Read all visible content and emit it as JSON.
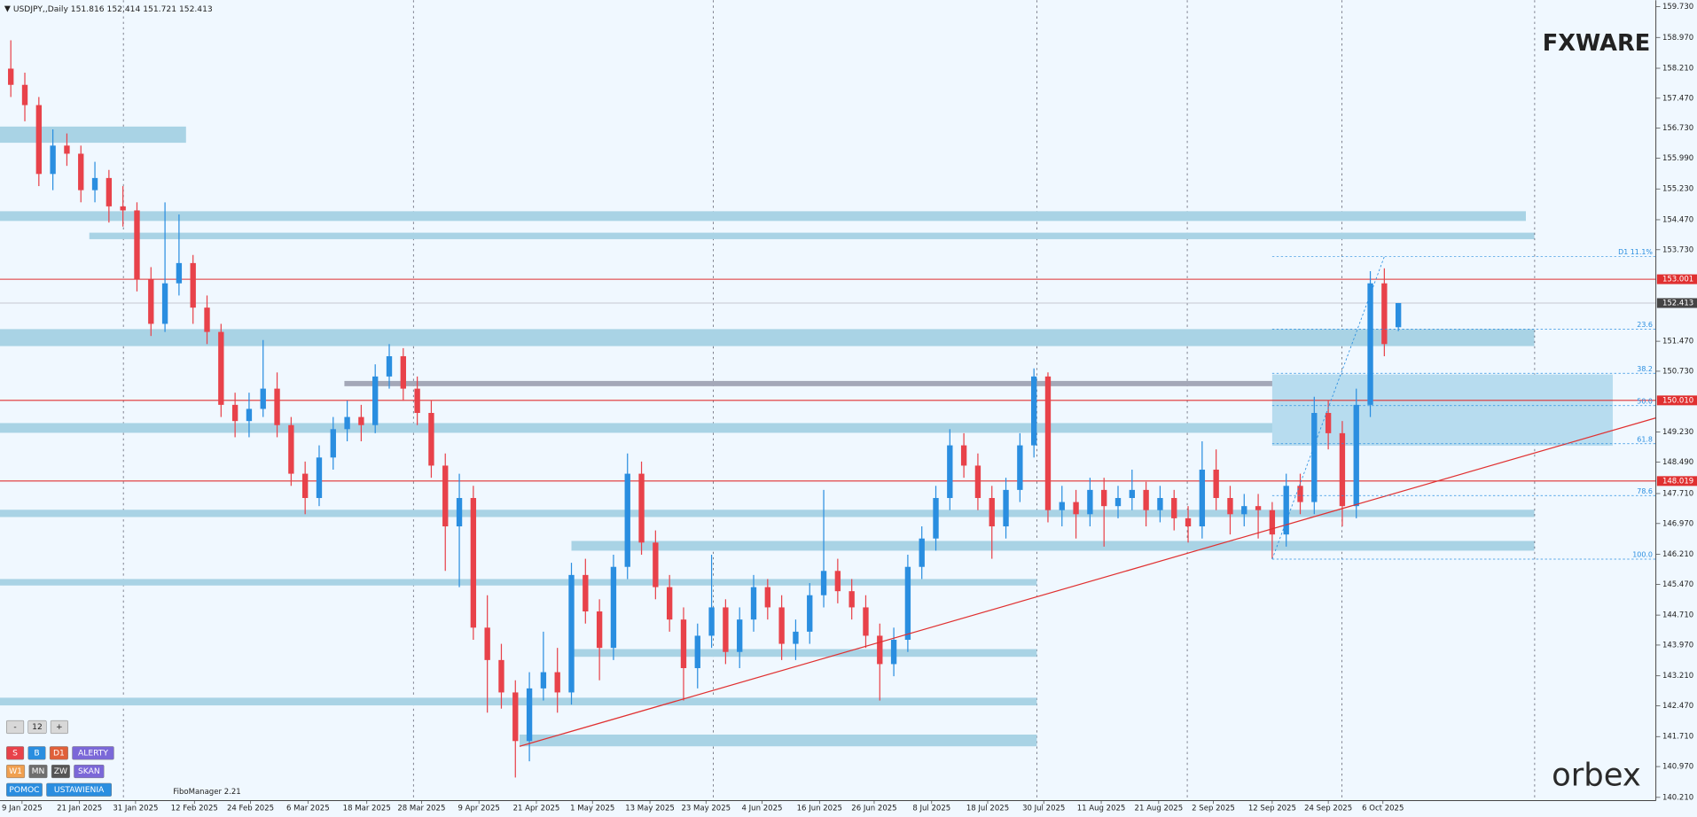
{
  "chart_data": {
    "type": "candlestick",
    "title": "USDJPY,,Daily",
    "candles": [
      [
        158.2,
        158.9,
        157.5,
        157.8
      ],
      [
        157.8,
        158.1,
        156.9,
        157.3
      ],
      [
        157.3,
        157.5,
        155.3,
        155.6
      ],
      [
        155.6,
        156.7,
        155.2,
        156.3
      ],
      [
        156.3,
        156.6,
        155.8,
        156.1
      ],
      [
        156.1,
        156.3,
        154.9,
        155.2
      ],
      [
        155.2,
        155.9,
        154.9,
        155.5
      ],
      [
        155.5,
        155.7,
        154.4,
        154.8
      ],
      [
        154.8,
        155.3,
        154.3,
        154.7
      ],
      [
        154.7,
        154.9,
        152.7,
        153.0
      ],
      [
        153.0,
        153.3,
        151.6,
        151.9
      ],
      [
        151.9,
        154.9,
        151.7,
        152.9
      ],
      [
        152.9,
        154.6,
        152.6,
        153.4
      ],
      [
        153.4,
        153.6,
        151.9,
        152.3
      ],
      [
        152.3,
        152.6,
        151.4,
        151.7
      ],
      [
        151.7,
        151.9,
        149.6,
        149.9
      ],
      [
        149.9,
        150.2,
        149.1,
        149.5
      ],
      [
        149.5,
        150.2,
        149.1,
        149.8
      ],
      [
        149.8,
        151.5,
        149.6,
        150.3
      ],
      [
        150.3,
        150.7,
        149.1,
        149.4
      ],
      [
        149.4,
        149.6,
        147.9,
        148.2
      ],
      [
        148.2,
        148.5,
        147.2,
        147.6
      ],
      [
        147.6,
        148.9,
        147.4,
        148.6
      ],
      [
        148.6,
        149.6,
        148.3,
        149.3
      ],
      [
        149.3,
        150.0,
        149.0,
        149.6
      ],
      [
        149.6,
        149.9,
        149.0,
        149.4
      ],
      [
        149.4,
        150.9,
        149.2,
        150.6
      ],
      [
        150.6,
        151.4,
        150.3,
        151.1
      ],
      [
        151.1,
        151.3,
        150.0,
        150.3
      ],
      [
        150.3,
        150.6,
        149.4,
        149.7
      ],
      [
        149.7,
        150.0,
        148.1,
        148.4
      ],
      [
        148.4,
        148.7,
        145.8,
        146.9
      ],
      [
        146.9,
        148.2,
        145.4,
        147.6
      ],
      [
        147.6,
        147.9,
        144.1,
        144.4
      ],
      [
        144.4,
        145.2,
        142.3,
        143.6
      ],
      [
        143.6,
        144.0,
        142.4,
        142.8
      ],
      [
        142.8,
        143.1,
        140.7,
        141.6
      ],
      [
        141.6,
        143.3,
        141.1,
        142.9
      ],
      [
        142.9,
        144.3,
        142.6,
        143.3
      ],
      [
        143.3,
        143.9,
        142.3,
        142.8
      ],
      [
        142.8,
        146.0,
        142.5,
        145.7
      ],
      [
        145.7,
        146.1,
        144.5,
        144.8
      ],
      [
        144.8,
        145.1,
        143.1,
        143.9
      ],
      [
        143.9,
        146.2,
        143.6,
        145.9
      ],
      [
        145.9,
        148.7,
        145.6,
        148.2
      ],
      [
        148.2,
        148.5,
        146.2,
        146.5
      ],
      [
        146.5,
        146.8,
        145.1,
        145.4
      ],
      [
        145.4,
        145.7,
        144.3,
        144.6
      ],
      [
        144.6,
        144.9,
        142.6,
        143.4
      ],
      [
        143.4,
        144.5,
        142.9,
        144.2
      ],
      [
        144.2,
        146.2,
        143.9,
        144.9
      ],
      [
        144.9,
        145.1,
        143.5,
        143.8
      ],
      [
        143.8,
        144.9,
        143.4,
        144.6
      ],
      [
        144.6,
        145.7,
        144.3,
        145.4
      ],
      [
        145.4,
        145.6,
        144.6,
        144.9
      ],
      [
        144.9,
        145.2,
        143.6,
        144.0
      ],
      [
        144.0,
        144.6,
        143.6,
        144.3
      ],
      [
        144.3,
        145.5,
        144.0,
        145.2
      ],
      [
        145.2,
        147.8,
        144.9,
        145.8
      ],
      [
        145.8,
        146.1,
        145.0,
        145.3
      ],
      [
        145.3,
        145.6,
        144.6,
        144.9
      ],
      [
        144.9,
        145.2,
        143.9,
        144.2
      ],
      [
        144.2,
        144.5,
        142.6,
        143.5
      ],
      [
        143.5,
        144.4,
        143.2,
        144.1
      ],
      [
        144.1,
        146.2,
        143.8,
        145.9
      ],
      [
        145.9,
        146.9,
        145.6,
        146.6
      ],
      [
        146.6,
        147.9,
        146.3,
        147.6
      ],
      [
        147.6,
        149.3,
        147.3,
        148.9
      ],
      [
        148.9,
        149.2,
        148.1,
        148.4
      ],
      [
        148.4,
        148.7,
        147.3,
        147.6
      ],
      [
        147.6,
        147.9,
        146.1,
        146.9
      ],
      [
        146.9,
        148.1,
        146.6,
        147.8
      ],
      [
        147.8,
        149.2,
        147.5,
        148.9
      ],
      [
        148.9,
        150.8,
        148.6,
        150.6
      ],
      [
        150.6,
        150.7,
        147.0,
        147.3
      ],
      [
        147.3,
        147.9,
        146.9,
        147.5
      ],
      [
        147.5,
        147.8,
        146.6,
        147.2
      ],
      [
        147.2,
        148.1,
        146.9,
        147.8
      ],
      [
        147.8,
        148.1,
        146.4,
        147.4
      ],
      [
        147.4,
        147.9,
        147.1,
        147.6
      ],
      [
        147.6,
        148.3,
        147.3,
        147.8
      ],
      [
        147.8,
        148.0,
        146.9,
        147.3
      ],
      [
        147.3,
        147.9,
        147.0,
        147.6
      ],
      [
        147.6,
        147.8,
        146.8,
        147.1
      ],
      [
        147.1,
        147.4,
        146.5,
        146.9
      ],
      [
        146.9,
        149.0,
        146.6,
        148.3
      ],
      [
        148.3,
        148.8,
        147.3,
        147.6
      ],
      [
        147.6,
        147.9,
        146.7,
        147.2
      ],
      [
        147.2,
        147.7,
        146.9,
        147.4
      ],
      [
        147.4,
        147.7,
        146.6,
        147.3
      ],
      [
        147.3,
        147.5,
        146.1,
        146.7
      ],
      [
        146.7,
        148.2,
        146.4,
        147.9
      ],
      [
        147.9,
        148.2,
        147.2,
        147.5
      ],
      [
        147.5,
        150.1,
        147.2,
        149.7
      ],
      [
        149.7,
        150.0,
        148.8,
        149.2
      ],
      [
        149.2,
        149.5,
        146.9,
        147.4
      ],
      [
        147.4,
        150.3,
        147.1,
        149.9
      ],
      [
        149.9,
        153.2,
        149.6,
        152.9
      ],
      [
        152.9,
        153.27,
        151.1,
        151.4
      ],
      [
        151.816,
        152.414,
        151.721,
        152.413
      ]
    ],
    "up_color": "#2a8ee0",
    "down_color": "#e8424a",
    "ylim": [
      140.21,
      159.73
    ],
    "yticks": [
      {
        "value": 159.73,
        "label": "159.730"
      },
      {
        "value": 158.97,
        "label": "158.970"
      },
      {
        "value": 158.21,
        "label": "158.210"
      },
      {
        "value": 157.47,
        "label": "157.470"
      },
      {
        "value": 156.73,
        "label": "156.730"
      },
      {
        "value": 155.99,
        "label": "155.990"
      },
      {
        "value": 155.23,
        "label": "155.230"
      },
      {
        "value": 154.47,
        "label": "154.470"
      },
      {
        "value": 153.73,
        "label": "153.730"
      },
      {
        "value": 151.47,
        "label": "151.470"
      },
      {
        "value": 150.73,
        "label": "150.730"
      },
      {
        "value": 149.23,
        "label": "149.230"
      },
      {
        "value": 148.49,
        "label": "148.490"
      },
      {
        "value": 147.71,
        "label": "147.710"
      },
      {
        "value": 146.97,
        "label": "146.970"
      },
      {
        "value": 146.21,
        "label": "146.210"
      },
      {
        "value": 145.47,
        "label": "145.470"
      },
      {
        "value": 144.71,
        "label": "144.710"
      },
      {
        "value": 143.97,
        "label": "143.970"
      },
      {
        "value": 143.21,
        "label": "143.210"
      },
      {
        "value": 142.47,
        "label": "142.470"
      },
      {
        "value": 141.71,
        "label": "141.710"
      },
      {
        "value": 140.97,
        "label": "140.970"
      },
      {
        "value": 140.21,
        "label": "140.210"
      }
    ],
    "xticks": [
      {
        "value": 0.8,
        "label": "9 Jan 2025"
      },
      {
        "value": 4.9,
        "label": "21 Jan 2025"
      },
      {
        "value": 8.9,
        "label": "31 Jan 2025"
      },
      {
        "value": 13.1,
        "label": "12 Feb 2025"
      },
      {
        "value": 17.1,
        "label": "24 Feb 2025"
      },
      {
        "value": 21.2,
        "label": "6 Mar 2025"
      },
      {
        "value": 25.4,
        "label": "18 Mar 2025"
      },
      {
        "value": 29.3,
        "label": "28 Mar 2025"
      },
      {
        "value": 33.4,
        "label": "9 Apr 2025"
      },
      {
        "value": 37.5,
        "label": "21 Apr 2025"
      },
      {
        "value": 41.5,
        "label": "1 May 2025"
      },
      {
        "value": 45.6,
        "label": "13 May 2025"
      },
      {
        "value": 49.6,
        "label": "23 May 2025"
      },
      {
        "value": 53.6,
        "label": "4 Jun 2025"
      },
      {
        "value": 57.7,
        "label": "16 Jun 2025"
      },
      {
        "value": 61.6,
        "label": "26 Jun 2025"
      },
      {
        "value": 65.7,
        "label": "8 Jul 2025"
      },
      {
        "value": 69.7,
        "label": "18 Jul 2025"
      },
      {
        "value": 73.7,
        "label": "30 Jul 2025"
      },
      {
        "value": 77.8,
        "label": "11 Aug 2025"
      },
      {
        "value": 81.9,
        "label": "21 Aug 2025"
      },
      {
        "value": 85.8,
        "label": "2 Sep 2025"
      },
      {
        "value": 90.0,
        "label": "12 Sep 2025"
      },
      {
        "value": 94.0,
        "label": "24 Sep 2025"
      },
      {
        "value": 97.9,
        "label": "6 Oct 2025"
      }
    ],
    "levels": [
      {
        "value": 153.001,
        "color": "#e03030"
      },
      {
        "value": {
          "value": 150.01,
          "label": "150.010"
        },
        "color": "#e03030"
      },
      {
        "value": 148.019,
        "color": "#e03030"
      }
    ],
    "zone_color": "#a9d3e5",
    "zones": [
      {
        "top": 156.77,
        "bottom": 156.37,
        "start": -0.8,
        "end": 12.5
      },
      {
        "top": 154.68,
        "bottom": 154.44,
        "start": -0.8,
        "end": 108.1
      },
      {
        "top": 154.15,
        "bottom": 153.99,
        "start": 5.6,
        "end": 108.7
      },
      {
        "top": 151.77,
        "bottom": 151.35,
        "start": -0.8,
        "end": 108.7
      },
      {
        "top": 150.49,
        "bottom": 150.36,
        "start": 23.8,
        "end": 108.7,
        "color": "#a4a8b8"
      },
      {
        "top": 149.45,
        "bottom": 149.21,
        "start": -0.8,
        "end": 108.7
      },
      {
        "top": 147.31,
        "bottom": 147.13,
        "start": -0.8,
        "end": 108.7
      },
      {
        "top": 146.54,
        "bottom": 146.3,
        "start": 40,
        "end": 108.7
      },
      {
        "top": 145.6,
        "bottom": 145.44,
        "start": -0.8,
        "end": 73.2
      },
      {
        "top": 143.87,
        "bottom": 143.68,
        "start": 40,
        "end": 73.2
      },
      {
        "top": 142.67,
        "bottom": 142.48,
        "start": -0.8,
        "end": 73.2
      },
      {
        "top": 141.76,
        "bottom": 141.47,
        "start": 36.3,
        "end": 73.2
      },
      {
        "top": 150.65,
        "bottom": 148.89,
        "start": 90,
        "end": 114.3,
        "color": "#b7dcef"
      }
    ],
    "trendline": {
      "color": "#e03030",
      "start": [
        36.3,
        141.47
      ],
      "end": [
        117.4,
        149.58
      ]
    },
    "fibo": {
      "color": "#2a8ee0",
      "start": 90,
      "levels": [
        {
          "label": "D1 11.1%",
          "value": 153.56
        },
        {
          "label": "23.6",
          "value": 151.77
        },
        {
          "label": "38.2",
          "value": 150.68
        },
        {
          "label": "50.0",
          "value": 149.88
        },
        {
          "label": "61.8",
          "value": 148.94
        },
        {
          "label": "78.6",
          "value": 147.66
        },
        {
          "label": "100.0",
          "value": 146.09
        }
      ]
    }
  },
  "indicator": "FiboManager 2.21",
  "logos": {
    "top": "FXWARE",
    "bottom": "orbex"
  },
  "toolbar": [
    [
      {
        "label": "-",
        "color": "#d8d8d8"
      },
      {
        "label": "12",
        "color": "#d8d8d8"
      },
      {
        "label": "+",
        "color": "#d8d8d8"
      }
    ],
    [
      {
        "label": "S",
        "color": "#e8424a"
      },
      {
        "label": "B",
        "color": "#2a8ee0"
      },
      {
        "label": "D1",
        "color": "#e0603a"
      },
      {
        "label": "ALERTY",
        "color": "#7b68d8"
      }
    ],
    [
      {
        "label": "W1",
        "color": "#f0a050"
      },
      {
        "label": "MN",
        "color": "#6e6e6e"
      },
      {
        "label": "ZW",
        "color": "#555555"
      },
      {
        "label": "SKAN",
        "color": "#7b68d8"
      }
    ],
    [
      {
        "label": "POMOC",
        "color": "#2a8ee0"
      },
      {
        "label": "USTAWIENIA",
        "color": "#2a8ee0"
      }
    ]
  ]
}
